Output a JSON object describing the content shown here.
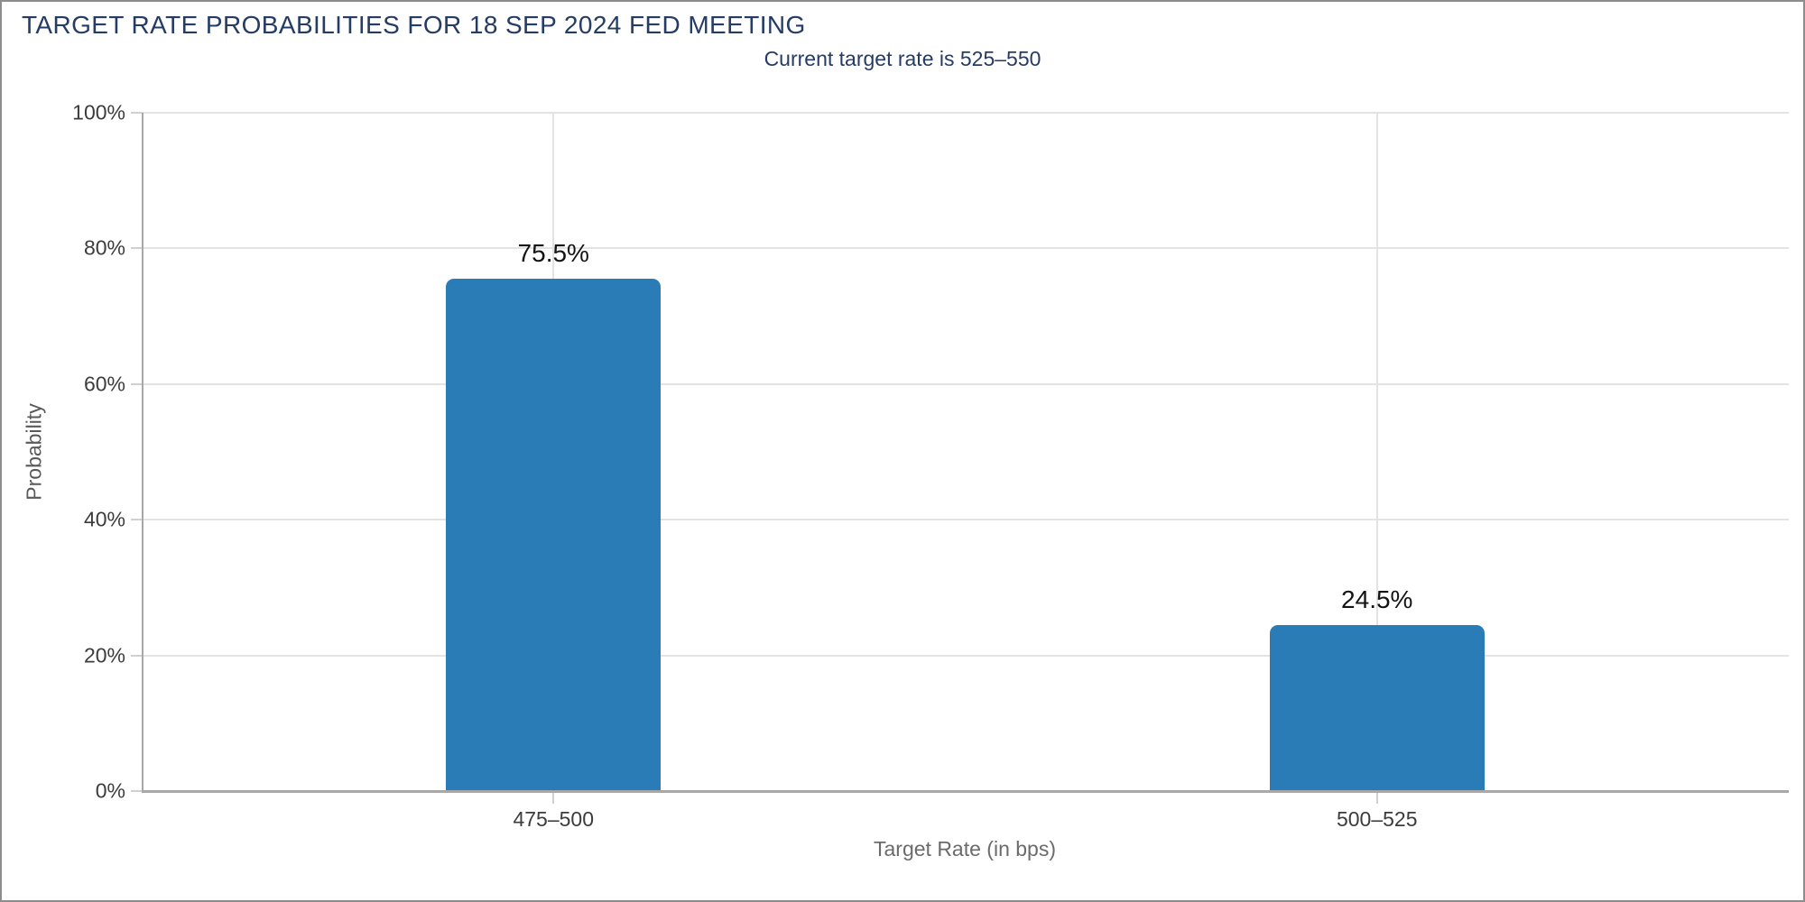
{
  "window": {
    "background_color": "#ffffff",
    "border_color": "#8c8c8c"
  },
  "header": {
    "title": "TARGET RATE PROBABILITIES FOR 18 SEP 2024 FED MEETING",
    "subtitle": "Current target rate is 525–550",
    "title_color": "#253c64"
  },
  "chart_data": {
    "type": "bar",
    "title": "TARGET RATE PROBABILITIES FOR 18 SEP 2024 FED MEETING",
    "subtitle": "Current target rate is 525–550",
    "categories": [
      "475–500",
      "500–525"
    ],
    "values": [
      75.5,
      24.5
    ],
    "value_labels": [
      "75.5%",
      "24.5%"
    ],
    "xlabel": "Target Rate (in bps)",
    "ylabel": "Probability",
    "ylim": [
      0,
      100
    ],
    "yticks": [
      0,
      20,
      40,
      60,
      80,
      100
    ],
    "ytick_labels": [
      "0%",
      "20%",
      "40%",
      "60%",
      "80%",
      "100%"
    ],
    "grid": true,
    "legend": false,
    "bar_color": "#2a7cb7",
    "value_label_color": "#141414",
    "gridline_color": "#e3e3e3",
    "axis_line_color": "#a8a8a8"
  }
}
